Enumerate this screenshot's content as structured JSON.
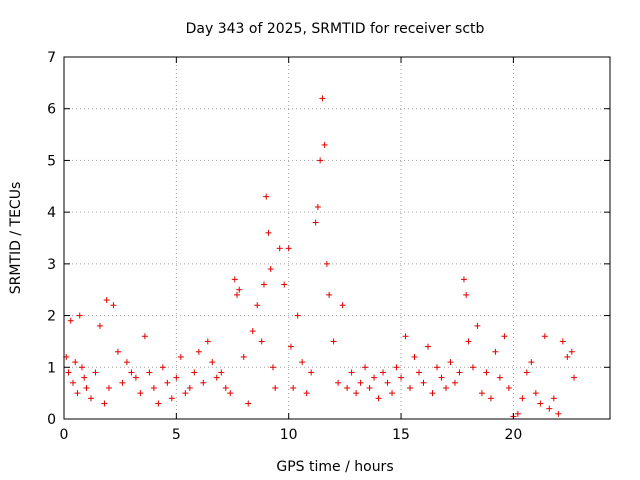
{
  "chart_data": {
    "type": "scatter",
    "title": "Day 343 of 2025, SRMTID for receiver sctb",
    "xlabel": "GPS time / hours",
    "ylabel": "SRMTID / TECUs",
    "xlim": [
      0,
      24.3
    ],
    "ylim": [
      0,
      7
    ],
    "xticks": [
      0,
      5,
      10,
      15,
      20
    ],
    "yticks": [
      0,
      1,
      2,
      3,
      4,
      5,
      6,
      7
    ],
    "grid": true,
    "marker": "plus",
    "color": "#e00000",
    "series": [
      {
        "name": "SRMTID",
        "x": [
          0.1,
          0.2,
          0.3,
          0.4,
          0.5,
          0.6,
          0.7,
          0.8,
          0.9,
          1.0,
          1.2,
          1.4,
          1.6,
          1.8,
          1.9,
          2.0,
          2.2,
          2.4,
          2.6,
          2.8,
          3.0,
          3.2,
          3.4,
          3.6,
          3.8,
          4.0,
          4.2,
          4.4,
          4.6,
          4.8,
          5.0,
          5.2,
          5.4,
          5.6,
          5.8,
          6.0,
          6.2,
          6.4,
          6.6,
          6.8,
          7.0,
          7.2,
          7.4,
          7.6,
          7.7,
          7.8,
          8.0,
          8.2,
          8.4,
          8.6,
          8.8,
          8.9,
          9.0,
          9.1,
          9.2,
          9.3,
          9.4,
          9.6,
          9.8,
          10.0,
          10.1,
          10.2,
          10.4,
          10.6,
          10.8,
          11.0,
          11.2,
          11.3,
          11.4,
          11.5,
          11.6,
          11.7,
          11.8,
          12.0,
          12.2,
          12.4,
          12.6,
          12.8,
          13.0,
          13.2,
          13.4,
          13.6,
          13.8,
          14.0,
          14.2,
          14.4,
          14.6,
          14.8,
          15.0,
          15.2,
          15.4,
          15.6,
          15.8,
          16.0,
          16.2,
          16.4,
          16.6,
          16.8,
          17.0,
          17.2,
          17.4,
          17.6,
          17.8,
          17.9,
          18.0,
          18.2,
          18.4,
          18.6,
          18.8,
          19.0,
          19.2,
          19.4,
          19.6,
          19.8,
          20.0,
          20.2,
          20.4,
          20.6,
          20.8,
          21.0,
          21.2,
          21.4,
          21.6,
          21.8,
          22.0,
          22.2,
          22.4,
          22.6,
          22.7
        ],
        "y": [
          1.2,
          0.9,
          1.9,
          0.7,
          1.1,
          0.5,
          2.0,
          1.0,
          0.8,
          0.6,
          0.4,
          0.9,
          1.8,
          0.3,
          2.3,
          0.6,
          2.2,
          1.3,
          0.7,
          1.1,
          0.9,
          0.8,
          0.5,
          1.6,
          0.9,
          0.6,
          0.3,
          1.0,
          0.7,
          0.4,
          0.8,
          1.2,
          0.5,
          0.6,
          0.9,
          1.3,
          0.7,
          1.5,
          1.1,
          0.8,
          0.9,
          0.6,
          0.5,
          2.7,
          2.4,
          2.5,
          1.2,
          0.3,
          1.7,
          2.2,
          1.5,
          2.6,
          4.3,
          3.6,
          2.9,
          1.0,
          0.6,
          3.3,
          2.6,
          3.3,
          1.4,
          0.6,
          2.0,
          1.1,
          0.5,
          0.9,
          3.8,
          4.1,
          5.0,
          6.2,
          5.3,
          3.0,
          2.4,
          1.5,
          0.7,
          2.2,
          0.6,
          0.9,
          0.5,
          0.7,
          1.0,
          0.6,
          0.8,
          0.4,
          0.9,
          0.7,
          0.5,
          1.0,
          0.8,
          1.6,
          0.6,
          1.2,
          0.9,
          0.7,
          1.4,
          0.5,
          1.0,
          0.8,
          0.6,
          1.1,
          0.7,
          0.9,
          2.7,
          2.4,
          1.5,
          1.0,
          1.8,
          0.5,
          0.9,
          0.4,
          1.3,
          0.8,
          1.6,
          0.6,
          0.05,
          0.1,
          0.4,
          0.9,
          1.1,
          0.5,
          0.3,
          1.6,
          0.2,
          0.4,
          0.1,
          1.5,
          1.2,
          1.3,
          0.8
        ]
      }
    ]
  }
}
